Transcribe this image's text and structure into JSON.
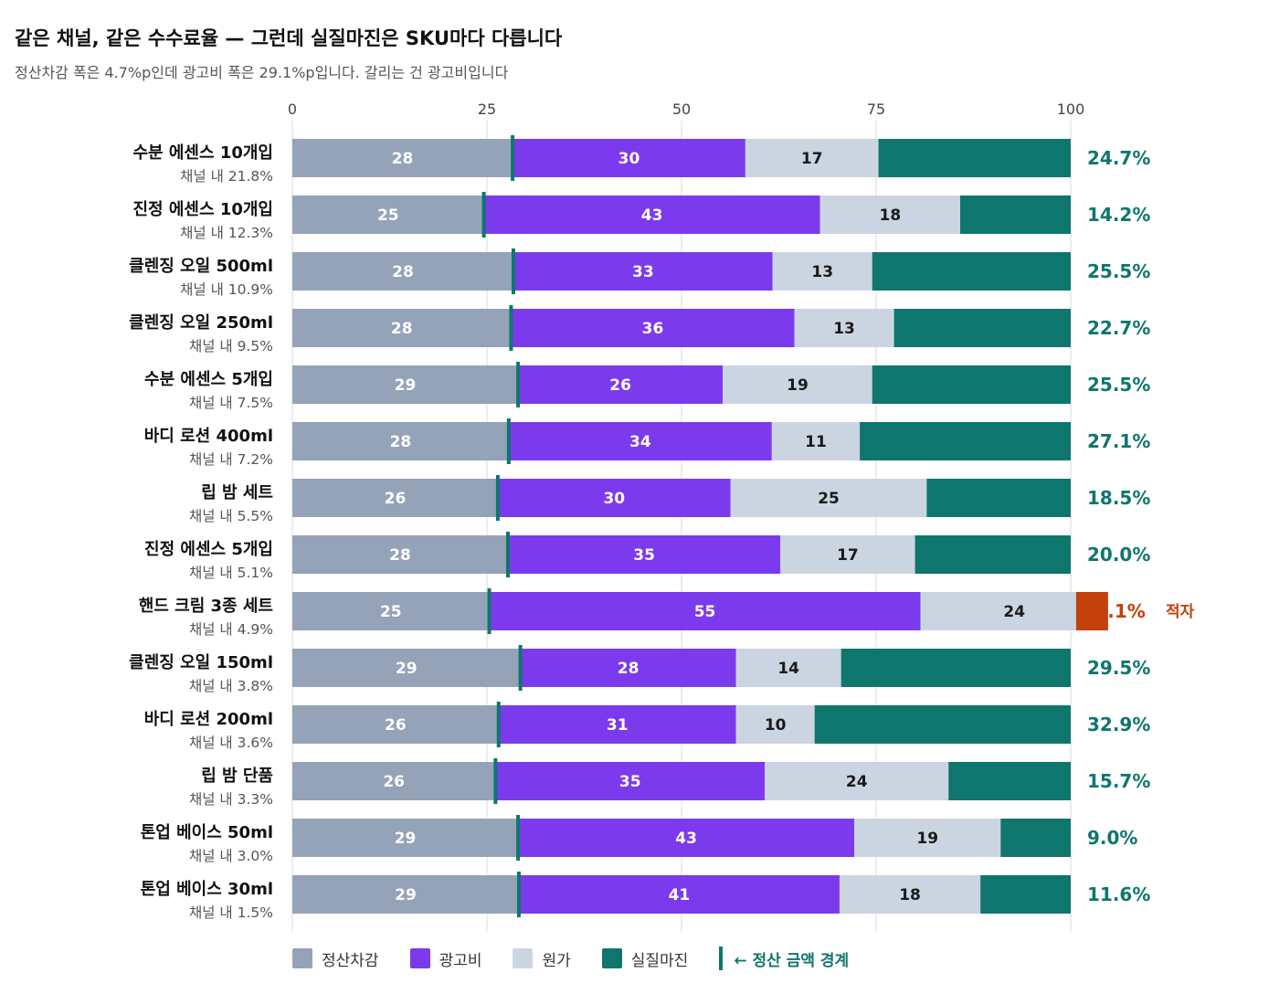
{
  "title": "같은 채널, 같은 수수료율 — 그런데 실질마진은 SKU마다 다릅니다",
  "subtitle": "정산차감 폭은 4.7%p인데 광고비 폭은 29.1%p입니다. 갈리는 건 광고비입니다",
  "colors": {
    "settlement": "#94a3b8",
    "ad": "#7c3aed",
    "cost": "#cbd5e1",
    "margin": "#0f766e",
    "loss": "#c2410c",
    "grid": "#e5e7eb"
  },
  "legend": {
    "settlement": "정산차감",
    "ad": "광고비",
    "cost": "원가",
    "margin": "실질마진",
    "boundary": "← 정산 금액 경계"
  },
  "chart_data": {
    "type": "bar",
    "orientation": "horizontal",
    "stacked": true,
    "xlim": [
      0,
      100
    ],
    "x_ticks": [
      "0",
      "25",
      "50",
      "75",
      "100"
    ],
    "grid": true,
    "legend_position": "bottom",
    "loss_note": "적자",
    "categories": [
      {
        "name": "수분 에센스 10개입",
        "share": "채널 내 21.8%"
      },
      {
        "name": "진정 에센스 10개입",
        "share": "채널 내 12.3%"
      },
      {
        "name": "클렌징 오일 500ml",
        "share": "채널 내 10.9%"
      },
      {
        "name": "클렌징 오일 250ml",
        "share": "채널 내 9.5%"
      },
      {
        "name": "수분 에센스 5개입",
        "share": "채널 내 7.5%"
      },
      {
        "name": "바디 로션 400ml",
        "share": "채널 내 7.2%"
      },
      {
        "name": "립 밤 세트",
        "share": "채널 내 5.5%"
      },
      {
        "name": "진정 에센스 5개입",
        "share": "채널 내 5.1%"
      },
      {
        "name": "핸드 크림 3종 세트",
        "share": "채널 내 4.9%"
      },
      {
        "name": "클렌징 오일 150ml",
        "share": "채널 내 3.8%"
      },
      {
        "name": "바디 로션 200ml",
        "share": "채널 내 3.6%"
      },
      {
        "name": "립 밤 단품",
        "share": "채널 내 3.3%"
      },
      {
        "name": "톤업 베이스 50ml",
        "share": "채널 내 3.0%"
      },
      {
        "name": "톤업 베이스 30ml",
        "share": "채널 내 1.5%"
      }
    ],
    "series": [
      {
        "key": "settlement",
        "name": "정산차감",
        "values": [
          28.3,
          24.6,
          28.4,
          28.1,
          29.0,
          27.8,
          26.4,
          27.7,
          25.3,
          29.3,
          26.5,
          26.1,
          29.0,
          29.1
        ]
      },
      {
        "key": "ad",
        "name": "광고비",
        "values": [
          29.9,
          43.2,
          33.3,
          36.4,
          26.3,
          33.8,
          29.9,
          35.0,
          55.4,
          27.7,
          30.5,
          34.6,
          43.2,
          41.2
        ]
      },
      {
        "key": "cost",
        "name": "원가",
        "values": [
          17.1,
          18.0,
          12.8,
          12.8,
          19.2,
          11.3,
          25.2,
          17.3,
          24.1,
          13.5,
          10.1,
          23.6,
          18.8,
          18.1
        ]
      },
      {
        "key": "margin",
        "name": "실질마진",
        "values": [
          24.7,
          14.2,
          25.5,
          22.7,
          25.5,
          27.1,
          18.5,
          20.0,
          -4.1,
          29.5,
          32.9,
          15.7,
          9.0,
          11.6
        ]
      }
    ],
    "segment_labels": {
      "settlement": [
        "28",
        "25",
        "28",
        "28",
        "29",
        "28",
        "26",
        "28",
        "25",
        "29",
        "26",
        "26",
        "29",
        "29"
      ],
      "ad": [
        "30",
        "43",
        "33",
        "36",
        "26",
        "34",
        "30",
        "35",
        "55",
        "28",
        "31",
        "35",
        "43",
        "41"
      ],
      "cost": [
        "17",
        "18",
        "13",
        "13",
        "19",
        "11",
        "25",
        "17",
        "24",
        "14",
        "10",
        "24",
        "19",
        "18"
      ]
    },
    "margin_labels": [
      "24.7%",
      "14.2%",
      "25.5%",
      "22.7%",
      "25.5%",
      "27.1%",
      "18.5%",
      "20.0%",
      "-4.1%",
      "29.5%",
      "32.9%",
      "15.7%",
      "9.0%",
      "11.6%"
    ]
  }
}
